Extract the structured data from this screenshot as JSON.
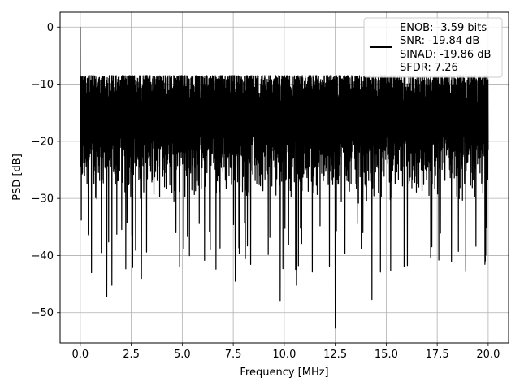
{
  "chart_data": {
    "type": "line",
    "title": "",
    "xlabel": "Frequency [MHz]",
    "ylabel": "PSD [dB]",
    "xlim": [
      -0.99,
      21.0
    ],
    "ylim": [
      -55.3,
      2.6
    ],
    "xticks": [
      0.0,
      2.5,
      5.0,
      7.5,
      10.0,
      12.5,
      15.0,
      17.5,
      20.0
    ],
    "xtick_labels": [
      "0.0",
      "2.5",
      "5.0",
      "7.5",
      "10.0",
      "12.5",
      "15.0",
      "17.5",
      "20.0"
    ],
    "yticks": [
      0,
      -10,
      -20,
      -30,
      -40,
      -50
    ],
    "ytick_labels": [
      "0",
      "−10",
      "−20",
      "−30",
      "−40",
      "−50"
    ],
    "grid": true,
    "legend_position": "top-right",
    "line_color": "#000000",
    "legend_lines": [
      "ENOB: -3.59 bits",
      "SNR: -19.84 dB",
      "SINAD: -19.86 dB",
      "SFDR: 7.26"
    ],
    "series": [
      {
        "x_start": 0.0,
        "x_end": 20.0,
        "envelope_max": -8.5,
        "envelope_typical_min": -31,
        "peaks": [
          {
            "x": 0.0,
            "y": 0.0
          },
          {
            "x": 0.05,
            "y": -33.8
          },
          {
            "x": 0.08,
            "y": -8.8
          },
          {
            "x": 0.55,
            "y": -43.0
          },
          {
            "x": 1.3,
            "y": -47.2
          },
          {
            "x": 1.55,
            "y": -45.2
          },
          {
            "x": 3.0,
            "y": -44.0
          },
          {
            "x": 7.6,
            "y": -44.5
          },
          {
            "x": 9.8,
            "y": -48.0
          },
          {
            "x": 10.6,
            "y": -45.2
          },
          {
            "x": 12.5,
            "y": -52.7
          },
          {
            "x": 14.3,
            "y": -47.7
          },
          {
            "x": 18.9,
            "y": -42.8
          }
        ]
      }
    ]
  }
}
